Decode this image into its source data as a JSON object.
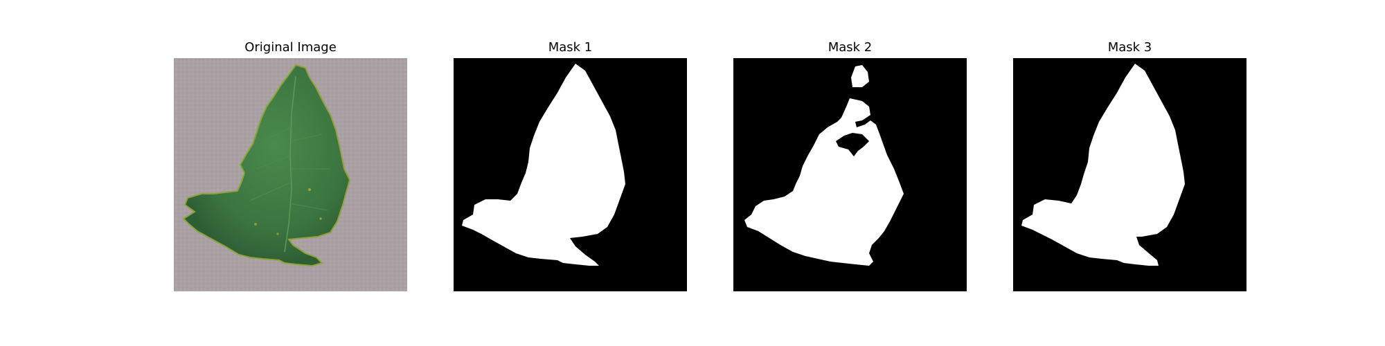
{
  "figure": {
    "panels": [
      {
        "title": "Original Image",
        "kind": "photo",
        "subject": "leaf"
      },
      {
        "title": "Mask 1",
        "kind": "binary-mask"
      },
      {
        "title": "Mask 2",
        "kind": "binary-mask"
      },
      {
        "title": "Mask 3",
        "kind": "binary-mask"
      }
    ]
  },
  "colors": {
    "background": "#a8a0a2",
    "leaf": "#3f7a3f",
    "leaf_dark": "#2f5f33",
    "leaf_edge": "#8fa23a",
    "mask_bg": "#000000",
    "mask_fg": "#ffffff"
  }
}
